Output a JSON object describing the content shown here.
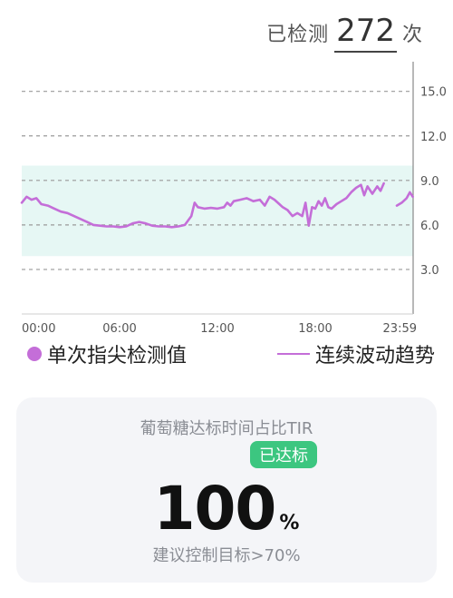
{
  "header": {
    "count_label": "已检测",
    "count_value": "272",
    "count_unit": "次"
  },
  "legend": {
    "single_label": "单次指尖检测值",
    "continuous_label": "连续波动趋势"
  },
  "tir": {
    "title": "葡萄糖达标时间占比TIR",
    "badge": "已达标",
    "value": "100",
    "unit": "%",
    "suggestion": "建议控制目标>70%"
  },
  "colors": {
    "series": "#c46ed8",
    "target_band": "#e6f7f4",
    "badge": "#3cc680"
  },
  "chart_data": {
    "type": "line",
    "x_ticks": [
      "00:00",
      "06:00",
      "12:00",
      "18:00",
      "23:59"
    ],
    "y_ticks": [
      "3.0",
      "6.0",
      "9.0",
      "12.0",
      "15.0"
    ],
    "ylim": [
      0,
      17
    ],
    "target_range": [
      3.9,
      10.0
    ],
    "series": [
      {
        "values": [
          [
            0.0,
            7.5
          ],
          [
            0.3,
            7.9
          ],
          [
            0.6,
            7.7
          ],
          [
            0.9,
            7.8
          ],
          [
            1.2,
            7.4
          ],
          [
            1.6,
            7.3
          ],
          [
            2.0,
            7.1
          ],
          [
            2.4,
            6.9
          ],
          [
            2.8,
            6.8
          ],
          [
            3.2,
            6.6
          ],
          [
            3.6,
            6.4
          ],
          [
            4.0,
            6.2
          ],
          [
            4.4,
            6.0
          ],
          [
            4.8,
            5.95
          ],
          [
            5.2,
            5.9
          ],
          [
            5.6,
            5.9
          ],
          [
            6.0,
            5.85
          ],
          [
            6.4,
            5.9
          ],
          [
            6.8,
            6.1
          ],
          [
            7.2,
            6.2
          ],
          [
            7.6,
            6.1
          ],
          [
            8.0,
            5.95
          ],
          [
            8.4,
            5.9
          ],
          [
            8.8,
            5.9
          ],
          [
            9.2,
            5.85
          ],
          [
            9.6,
            5.9
          ],
          [
            10.0,
            6.0
          ],
          [
            10.2,
            6.3
          ],
          [
            10.4,
            6.6
          ],
          [
            10.6,
            7.5
          ],
          [
            10.8,
            7.2
          ],
          [
            11.2,
            7.1
          ],
          [
            11.6,
            7.15
          ],
          [
            12.0,
            7.1
          ],
          [
            12.4,
            7.2
          ],
          [
            12.6,
            7.5
          ],
          [
            12.8,
            7.3
          ],
          [
            13.0,
            7.6
          ],
          [
            13.4,
            7.7
          ],
          [
            13.8,
            7.8
          ],
          [
            14.2,
            7.6
          ],
          [
            14.6,
            7.7
          ],
          [
            14.9,
            7.3
          ],
          [
            15.2,
            7.9
          ],
          [
            15.5,
            7.7
          ],
          [
            15.8,
            7.4
          ],
          [
            16.0,
            7.2
          ],
          [
            16.3,
            7.0
          ],
          [
            16.6,
            6.6
          ],
          [
            16.9,
            6.8
          ],
          [
            17.2,
            6.6
          ],
          [
            17.4,
            7.5
          ],
          [
            17.6,
            5.95
          ],
          [
            17.8,
            7.2
          ],
          [
            18.0,
            7.1
          ],
          [
            18.2,
            7.6
          ],
          [
            18.4,
            7.3
          ],
          [
            18.6,
            7.8
          ],
          [
            18.8,
            7.2
          ],
          [
            19.0,
            7.1
          ],
          [
            19.3,
            7.4
          ],
          [
            19.6,
            7.6
          ],
          [
            19.9,
            7.8
          ],
          [
            20.2,
            8.2
          ],
          [
            20.5,
            8.5
          ],
          [
            20.8,
            8.7
          ],
          [
            21.0,
            8.0
          ],
          [
            21.2,
            8.6
          ],
          [
            21.5,
            8.1
          ],
          [
            21.8,
            8.6
          ],
          [
            22.0,
            8.3
          ],
          [
            22.2,
            8.8
          ]
        ]
      },
      {
        "values": [
          [
            23.0,
            7.3
          ],
          [
            23.3,
            7.5
          ],
          [
            23.6,
            7.8
          ],
          [
            23.8,
            8.2
          ],
          [
            23.98,
            7.9
          ]
        ]
      }
    ],
    "grid": "dashed-horizontal"
  }
}
